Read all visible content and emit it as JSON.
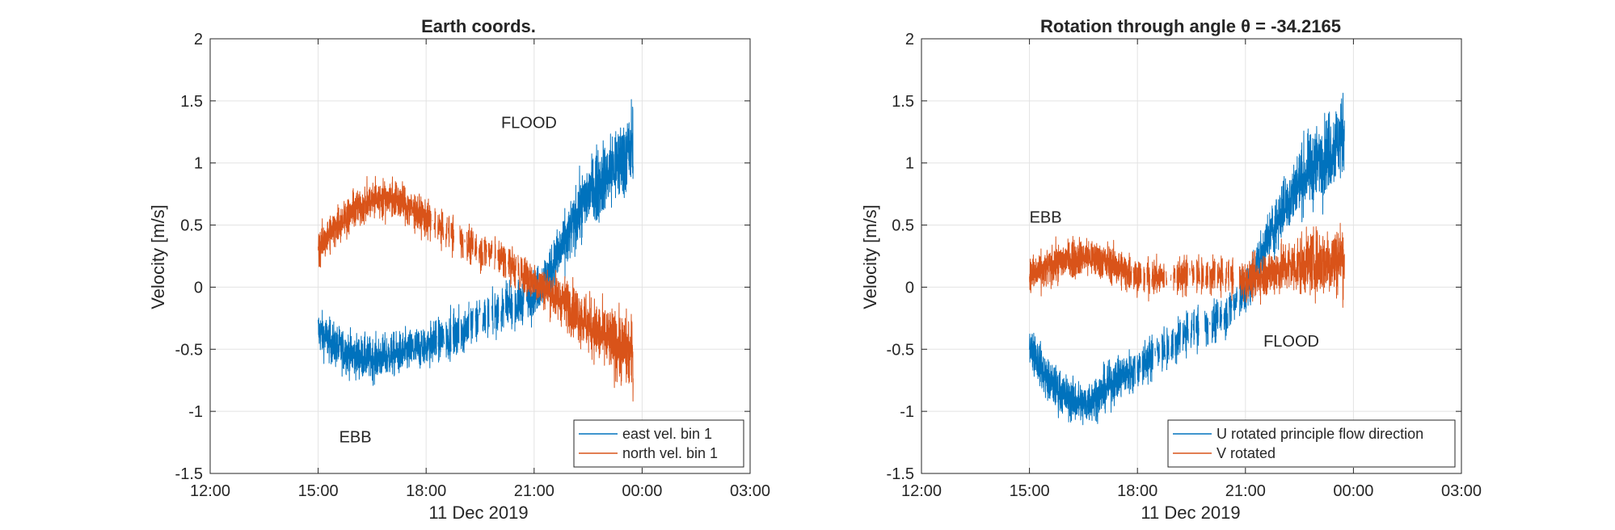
{
  "chart_data": [
    {
      "type": "line",
      "title": "Earth coords.",
      "xlabel": "11 Dec 2019",
      "ylabel": "Velocity [m/s]",
      "xlim": [
        "12:00",
        "03:00"
      ],
      "xticks": [
        "12:00",
        "15:00",
        "18:00",
        "21:00",
        "00:00",
        "03:00"
      ],
      "ylim": [
        -1.5,
        2
      ],
      "yticks": [
        "-1.5",
        "-1",
        "-0.5",
        "0",
        "0.5",
        "1",
        "1.5",
        "2"
      ],
      "grid": true,
      "legend_position": "bottom-right",
      "annotations": [
        {
          "text": "FLOOD",
          "x": "20:05",
          "y": 1.28
        },
        {
          "text": "EBB",
          "x": "15:35",
          "y": -1.25
        }
      ],
      "series": [
        {
          "name": "east vel. bin 1",
          "color": "#0072BD",
          "x": [
            "15:00",
            "15:30",
            "16:00",
            "16:30",
            "17:00",
            "17:30",
            "18:00",
            "18:30",
            "19:00",
            "19:30",
            "20:00",
            "20:30",
            "21:00",
            "21:30",
            "22:00",
            "22:30",
            "23:00",
            "23:30",
            "23:45"
          ],
          "y": [
            -0.35,
            -0.48,
            -0.55,
            -0.58,
            -0.55,
            -0.52,
            -0.47,
            -0.42,
            -0.35,
            -0.25,
            -0.2,
            -0.15,
            -0.05,
            0.15,
            0.45,
            0.75,
            0.9,
            1.05,
            1.15
          ]
        },
        {
          "name": "north vel. bin 1",
          "color": "#D95319",
          "x": [
            "15:00",
            "15:30",
            "16:00",
            "16:30",
            "17:00",
            "17:30",
            "18:00",
            "18:30",
            "19:00",
            "19:30",
            "20:00",
            "20:30",
            "21:00",
            "21:30",
            "22:00",
            "22:30",
            "23:00",
            "23:30",
            "23:45"
          ],
          "y": [
            0.3,
            0.5,
            0.62,
            0.7,
            0.72,
            0.65,
            0.55,
            0.45,
            0.38,
            0.3,
            0.25,
            0.15,
            0.05,
            -0.05,
            -0.15,
            -0.3,
            -0.42,
            -0.5,
            -0.55
          ]
        }
      ]
    },
    {
      "type": "line",
      "title": "Rotation through angle θ = -34.2165",
      "xlabel": "11 Dec 2019",
      "ylabel": "Velocity [m/s]",
      "xlim": [
        "12:00",
        "03:00"
      ],
      "xticks": [
        "12:00",
        "15:00",
        "18:00",
        "21:00",
        "00:00",
        "03:00"
      ],
      "ylim": [
        -1.5,
        2
      ],
      "yticks": [
        "-1.5",
        "-1",
        "-0.5",
        "0",
        "0.5",
        "1",
        "1.5",
        "2"
      ],
      "grid": true,
      "legend_position": "bottom-right",
      "annotations": [
        {
          "text": "EBB",
          "x": "15:00",
          "y": 0.52
        },
        {
          "text": "FLOOD",
          "x": "21:30",
          "y": -0.48
        }
      ],
      "series": [
        {
          "name": "U rotated principle flow direction",
          "color": "#0072BD",
          "x": [
            "15:00",
            "15:30",
            "16:00",
            "16:30",
            "17:00",
            "17:30",
            "18:00",
            "18:30",
            "19:00",
            "19:30",
            "20:00",
            "20:30",
            "21:00",
            "21:30",
            "22:00",
            "22:30",
            "23:00",
            "23:30",
            "23:45"
          ],
          "y": [
            -0.45,
            -0.75,
            -0.88,
            -0.95,
            -0.85,
            -0.72,
            -0.65,
            -0.55,
            -0.45,
            -0.35,
            -0.3,
            -0.2,
            -0.05,
            0.3,
            0.6,
            0.85,
            1.0,
            1.15,
            1.25
          ]
        },
        {
          "name": "V rotated",
          "color": "#D95319",
          "x": [
            "15:00",
            "15:30",
            "16:00",
            "16:30",
            "17:00",
            "17:30",
            "18:00",
            "18:30",
            "19:00",
            "19:30",
            "20:00",
            "20:30",
            "21:00",
            "21:30",
            "22:00",
            "22:30",
            "23:00",
            "23:30",
            "23:45"
          ],
          "y": [
            0.08,
            0.15,
            0.22,
            0.25,
            0.22,
            0.15,
            0.1,
            0.08,
            0.08,
            0.1,
            0.1,
            0.08,
            0.05,
            0.1,
            0.15,
            0.18,
            0.2,
            0.22,
            0.25
          ]
        }
      ]
    }
  ]
}
